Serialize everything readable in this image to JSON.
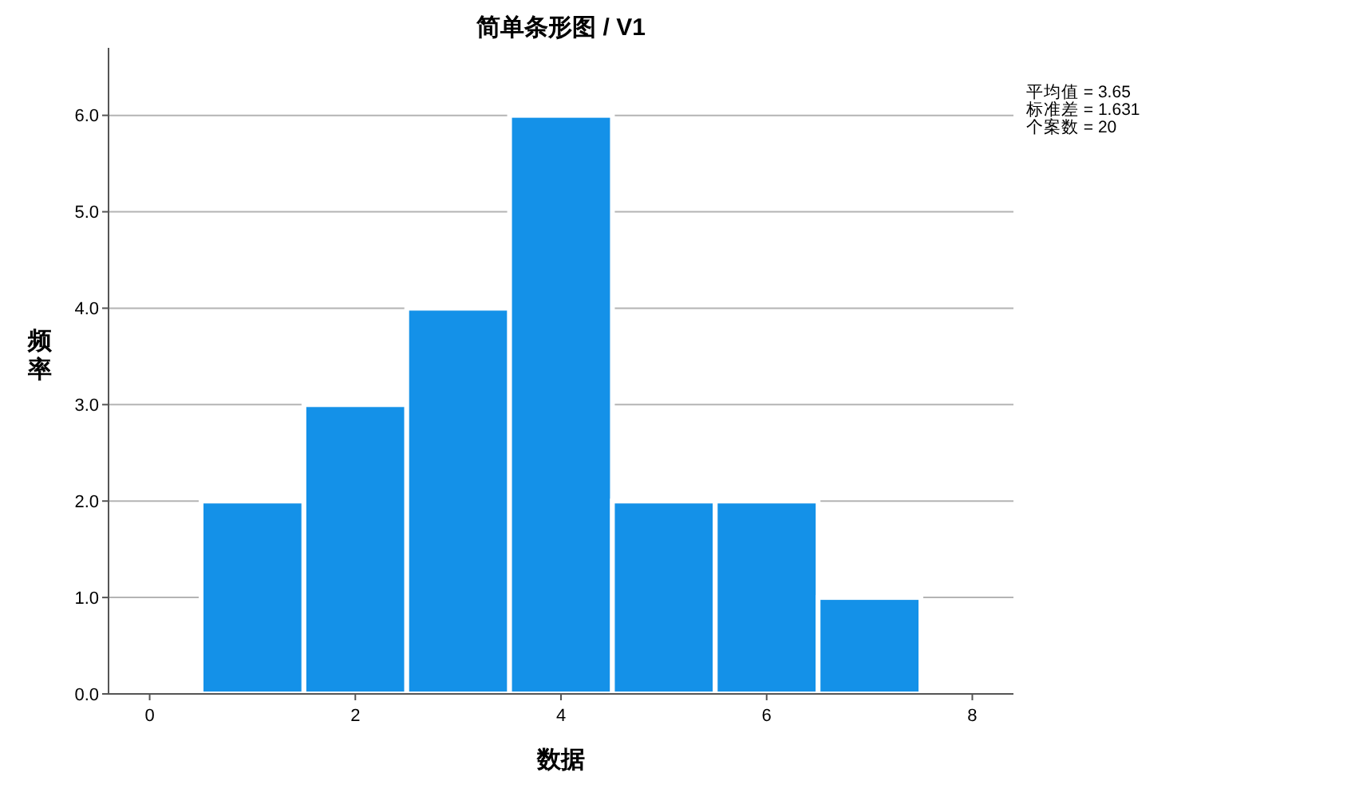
{
  "chart_data": {
    "type": "histogram",
    "title": "简单条形图 / V1",
    "xlabel": "数据",
    "ylabel": "频率",
    "bins": [
      0.5,
      1.5,
      2.5,
      3.5,
      4.5,
      5.5,
      6.5,
      7.5
    ],
    "values": [
      2,
      3,
      4,
      6,
      2,
      2,
      1
    ],
    "color": "#1491e8",
    "xlim": [
      -0.4,
      8.4
    ],
    "xticks": [
      0,
      2,
      4,
      6,
      8
    ],
    "ylim": [
      0,
      6.7
    ],
    "yticks": [
      {
        "value": 0,
        "label": "0.0"
      },
      {
        "value": 1,
        "label": "1.0"
      },
      {
        "value": 2,
        "label": "2.0"
      },
      {
        "value": 3,
        "label": "3.0"
      },
      {
        "value": 4,
        "label": "4.0"
      },
      {
        "value": 5,
        "label": "5.0"
      },
      {
        "value": 6,
        "label": "6.0"
      }
    ],
    "grid": "y",
    "annotations": [
      "平均值 = 3.65",
      "标准差 = 1.631",
      "个案数 = 20"
    ]
  }
}
